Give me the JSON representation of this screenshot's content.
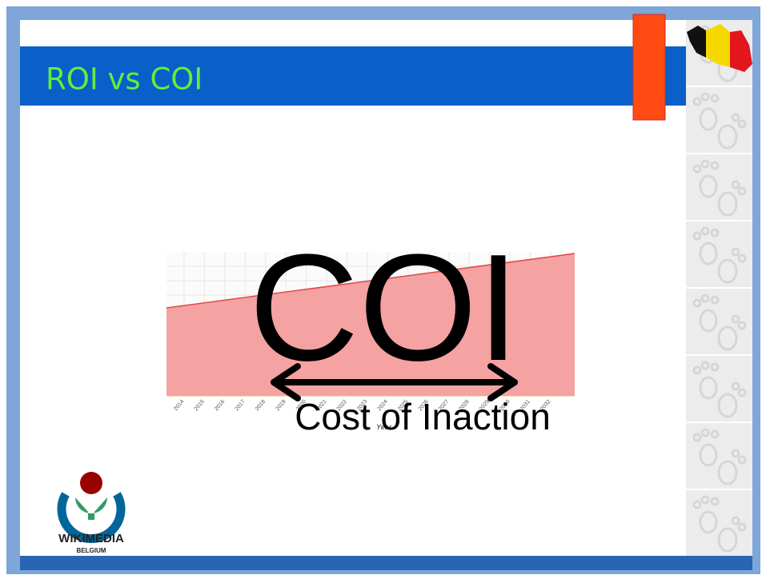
{
  "slide": {
    "title": "ROI  vs COI",
    "headline": "COI",
    "caption": "Cost of Inaction",
    "background_chart": {
      "x_labels": [
        "2014",
        "2015",
        "2016",
        "2017",
        "2018",
        "2019",
        "2020",
        "2021",
        "2022",
        "2023",
        "2024",
        "2025",
        "2026",
        "2027",
        "2028",
        "2029",
        "2030",
        "2031",
        "2032"
      ],
      "x_axis_label": "Year"
    },
    "logo": {
      "name": "WIKIMEDIA",
      "subtitle": "BELGIUM"
    }
  }
}
